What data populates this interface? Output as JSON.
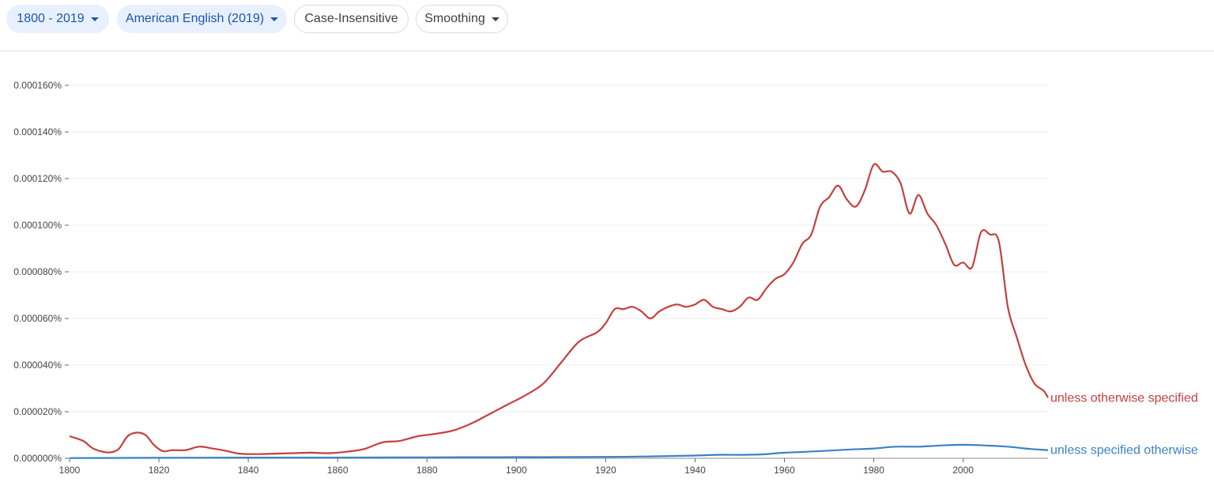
{
  "toolbar": {
    "year_range": "1800 - 2019",
    "corpus": "American English (2019)",
    "case": "Case-Insensitive",
    "smoothing": "Smoothing"
  },
  "colors": {
    "chip_selected_bg": "#e8f0fe",
    "chip_selected_text": "#1a56b0",
    "series_1": "#c5403e",
    "series_2": "#3b82c4"
  },
  "chart_data": {
    "type": "line",
    "xlim": [
      1800,
      2019
    ],
    "ylim": [
      0,
      0.00016
    ],
    "y_ticks": [
      "0.000000%",
      "0.000020%",
      "0.000040%",
      "0.000060%",
      "0.000080%",
      "0.000100%",
      "0.000120%",
      "0.000140%",
      "0.000160%"
    ],
    "x_ticks": [
      "1800",
      "1820",
      "1840",
      "1860",
      "1880",
      "1900",
      "1920",
      "1940",
      "1960",
      "1980",
      "2000"
    ],
    "grid": "horizontal",
    "series": [
      {
        "name": "unless otherwise specified",
        "color": "#c5403e",
        "x": [
          1800,
          1803,
          1805,
          1807,
          1809,
          1811,
          1813,
          1815,
          1817,
          1819,
          1821,
          1823,
          1826,
          1829,
          1832,
          1835,
          1838,
          1842,
          1846,
          1850,
          1854,
          1858,
          1862,
          1866,
          1870,
          1874,
          1878,
          1882,
          1886,
          1890,
          1894,
          1898,
          1902,
          1906,
          1910,
          1914,
          1918,
          1920,
          1922,
          1924,
          1926,
          1928,
          1930,
          1932,
          1934,
          1936,
          1938,
          1940,
          1942,
          1944,
          1946,
          1948,
          1950,
          1952,
          1954,
          1956,
          1958,
          1960,
          1962,
          1964,
          1966,
          1968,
          1970,
          1972,
          1974,
          1976,
          1978,
          1980,
          1982,
          1984,
          1986,
          1988,
          1990,
          1992,
          1994,
          1996,
          1998,
          2000,
          2002,
          2004,
          2006,
          2008,
          2010,
          2012,
          2014,
          2016,
          2018,
          2019
        ],
        "y": [
          9.5e-06,
          7.5e-06,
          4.5e-06,
          3e-06,
          2.5e-06,
          4e-06,
          9.5e-06,
          1.1e-05,
          1e-05,
          5.5e-06,
          3e-06,
          3.5e-06,
          3.5e-06,
          5e-06,
          4.2e-06,
          3.2e-06,
          2e-06,
          1.8e-06,
          2e-06,
          2.2e-06,
          2.4e-06,
          2.2e-06,
          2.8e-06,
          4e-06,
          6.8e-06,
          7.5e-06,
          9.5e-06,
          1.05e-05,
          1.2e-05,
          1.5e-05,
          1.9e-05,
          2.3e-05,
          2.7e-05,
          3.2e-05,
          4.1e-05,
          5e-05,
          5.4e-05,
          5.8e-05,
          6.4e-05,
          6.4e-05,
          6.5e-05,
          6.3e-05,
          6e-05,
          6.3e-05,
          6.5e-05,
          6.6e-05,
          6.5e-05,
          6.6e-05,
          6.8e-05,
          6.5e-05,
          6.4e-05,
          6.3e-05,
          6.5e-05,
          6.9e-05,
          6.8e-05,
          7.3e-05,
          7.7e-05,
          7.9e-05,
          8.4e-05,
          9.2e-05,
          9.6e-05,
          0.000108,
          0.000112,
          0.000117,
          0.000111,
          0.000108,
          0.000115,
          0.000126,
          0.000123,
          0.000123,
          0.000118,
          0.000105,
          0.000113,
          0.000105,
          0.0001,
          9.2e-05,
          8.3e-05,
          8.4e-05,
          8.2e-05,
          9.7e-05,
          9.6e-05,
          9.3e-05,
          6.5e-05,
          5.2e-05,
          4e-05,
          3.2e-05,
          2.9e-05,
          2.6e-05
        ]
      },
      {
        "name": "unless specified otherwise",
        "color": "#3b82c4",
        "x": [
          1800,
          1820,
          1840,
          1860,
          1880,
          1900,
          1920,
          1930,
          1940,
          1945,
          1950,
          1955,
          1960,
          1965,
          1970,
          1975,
          1980,
          1985,
          1990,
          1995,
          2000,
          2005,
          2010,
          2015,
          2019
        ],
        "y": [
          1e-07,
          2e-07,
          3e-07,
          3e-07,
          4e-07,
          5e-07,
          6e-07,
          8e-07,
          1.2e-06,
          1.5e-06,
          1.5e-06,
          1.7e-06,
          2.4e-06,
          2.8e-06,
          3.3e-06,
          3.8e-06,
          4.2e-06,
          5e-06,
          5e-06,
          5.5e-06,
          5.8e-06,
          5.5e-06,
          5e-06,
          4e-06,
          3.5e-06
        ]
      }
    ]
  }
}
